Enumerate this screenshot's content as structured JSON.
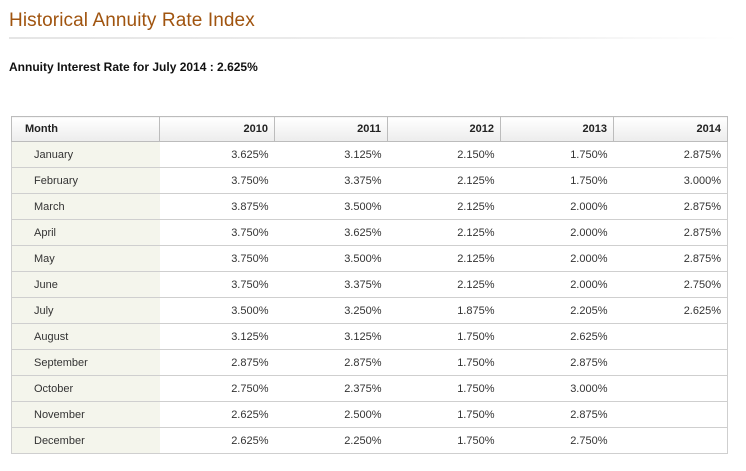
{
  "page": {
    "title": "Historical Annuity Rate Index",
    "rate_line": "Annuity Interest Rate for July 2014 : 2.625%"
  },
  "colors": {
    "title": "#a0540f",
    "month_cell_bg": "#f4f5ec",
    "border": "#cfcfcf"
  },
  "table": {
    "headers": [
      "Month",
      "2010",
      "2011",
      "2012",
      "2013",
      "2014"
    ],
    "rows": [
      {
        "month": "January",
        "values": [
          "3.625%",
          "3.125%",
          "2.150%",
          "1.750%",
          "2.875%"
        ]
      },
      {
        "month": "February",
        "values": [
          "3.750%",
          "3.375%",
          "2.125%",
          "1.750%",
          "3.000%"
        ]
      },
      {
        "month": "March",
        "values": [
          "3.875%",
          "3.500%",
          "2.125%",
          "2.000%",
          "2.875%"
        ]
      },
      {
        "month": "April",
        "values": [
          "3.750%",
          "3.625%",
          "2.125%",
          "2.000%",
          "2.875%"
        ]
      },
      {
        "month": "May",
        "values": [
          "3.750%",
          "3.500%",
          "2.125%",
          "2.000%",
          "2.875%"
        ]
      },
      {
        "month": "June",
        "values": [
          "3.750%",
          "3.375%",
          "2.125%",
          "2.000%",
          "2.750%"
        ]
      },
      {
        "month": "July",
        "values": [
          "3.500%",
          "3.250%",
          "1.875%",
          "2.205%",
          "2.625%"
        ]
      },
      {
        "month": "August",
        "values": [
          "3.125%",
          "3.125%",
          "1.750%",
          "2.625%",
          ""
        ]
      },
      {
        "month": "September",
        "values": [
          "2.875%",
          "2.875%",
          "1.750%",
          "2.875%",
          ""
        ]
      },
      {
        "month": "October",
        "values": [
          "2.750%",
          "2.375%",
          "1.750%",
          "3.000%",
          ""
        ]
      },
      {
        "month": "November",
        "values": [
          "2.625%",
          "2.500%",
          "1.750%",
          "2.875%",
          ""
        ]
      },
      {
        "month": "December",
        "values": [
          "2.625%",
          "2.250%",
          "1.750%",
          "2.750%",
          ""
        ]
      }
    ]
  }
}
